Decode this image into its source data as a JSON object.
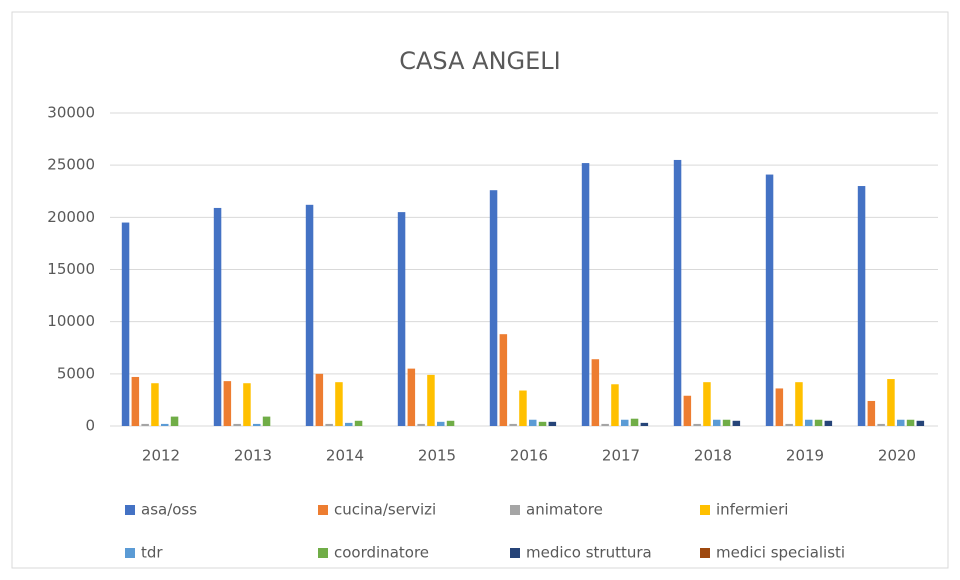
{
  "chart_data": {
    "type": "bar",
    "title": "CASA ANGELI",
    "categories": [
      "2012",
      "2013",
      "2014",
      "2015",
      "2016",
      "2017",
      "2018",
      "2019",
      "2020"
    ],
    "series": [
      {
        "name": "asa/oss",
        "color": "#4472c4",
        "values": [
          19500,
          20900,
          21200,
          20500,
          22600,
          25200,
          25500,
          24100,
          23000
        ]
      },
      {
        "name": "cucina/servizi",
        "color": "#ed7d31",
        "values": [
          4700,
          4300,
          5000,
          5500,
          8800,
          6400,
          2900,
          3600,
          2400
        ]
      },
      {
        "name": "animatore",
        "color": "#a5a5a5",
        "values": [
          200,
          200,
          200,
          200,
          200,
          200,
          200,
          200,
          200
        ]
      },
      {
        "name": "infermieri",
        "color": "#ffc000",
        "values": [
          4100,
          4100,
          4200,
          4900,
          3400,
          4000,
          4200,
          4200,
          4500
        ]
      },
      {
        "name": "tdr",
        "color": "#5b9bd5",
        "values": [
          200,
          200,
          300,
          400,
          600,
          600,
          600,
          600,
          600
        ]
      },
      {
        "name": "coordinatore",
        "color": "#70ad47",
        "values": [
          900,
          900,
          500,
          500,
          400,
          700,
          600,
          600,
          600
        ]
      },
      {
        "name": "medico struttura",
        "color": "#264478",
        "values": [
          0,
          0,
          0,
          0,
          400,
          300,
          500,
          500,
          500
        ]
      },
      {
        "name": "medici specialisti",
        "color": "#9e480e",
        "values": [
          0,
          0,
          0,
          0,
          0,
          0,
          0,
          0,
          0
        ]
      }
    ],
    "ylim": [
      0,
      30000
    ],
    "yticks": [
      0,
      5000,
      10000,
      15000,
      20000,
      25000,
      30000
    ],
    "grid": true,
    "legend": "bottom"
  }
}
